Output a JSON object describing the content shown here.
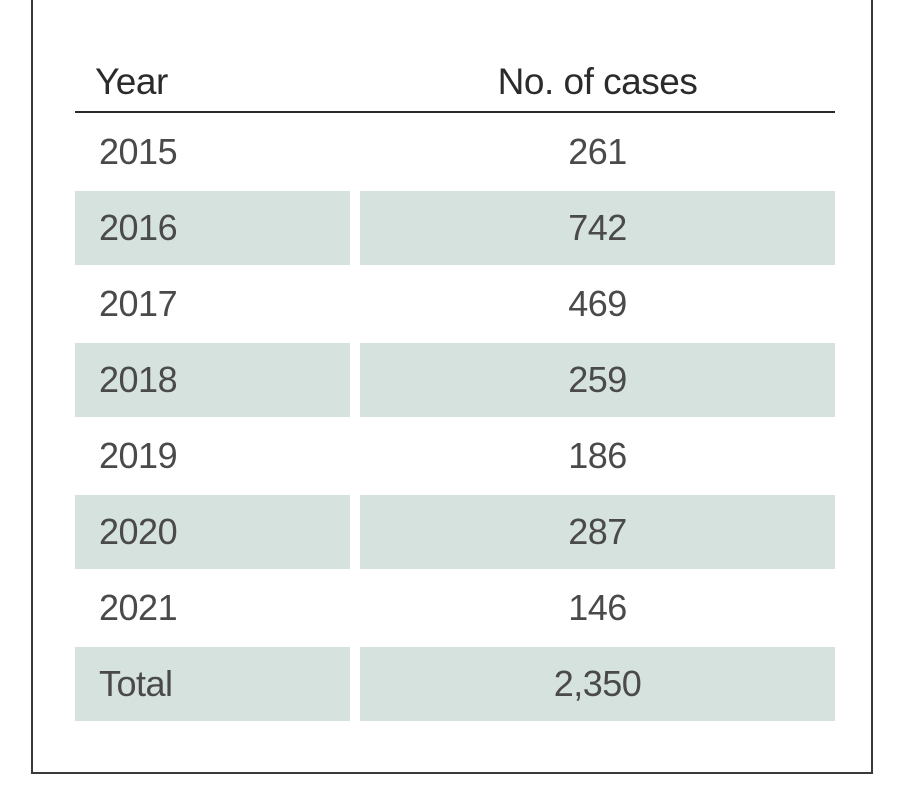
{
  "table": {
    "headers": {
      "year": "Year",
      "cases": "No. of cases"
    },
    "rows": [
      {
        "year": "2015",
        "cases": "261"
      },
      {
        "year": "2016",
        "cases": "742"
      },
      {
        "year": "2017",
        "cases": "469"
      },
      {
        "year": "2018",
        "cases": "259"
      },
      {
        "year": "2019",
        "cases": "186"
      },
      {
        "year": "2020",
        "cases": "287"
      },
      {
        "year": "2021",
        "cases": "146"
      },
      {
        "year": "Total",
        "cases": "2,350"
      }
    ],
    "colors": {
      "shaded_row": "#d6e2de",
      "text": "#4a4a4a",
      "rule": "#2b2b2b"
    }
  }
}
